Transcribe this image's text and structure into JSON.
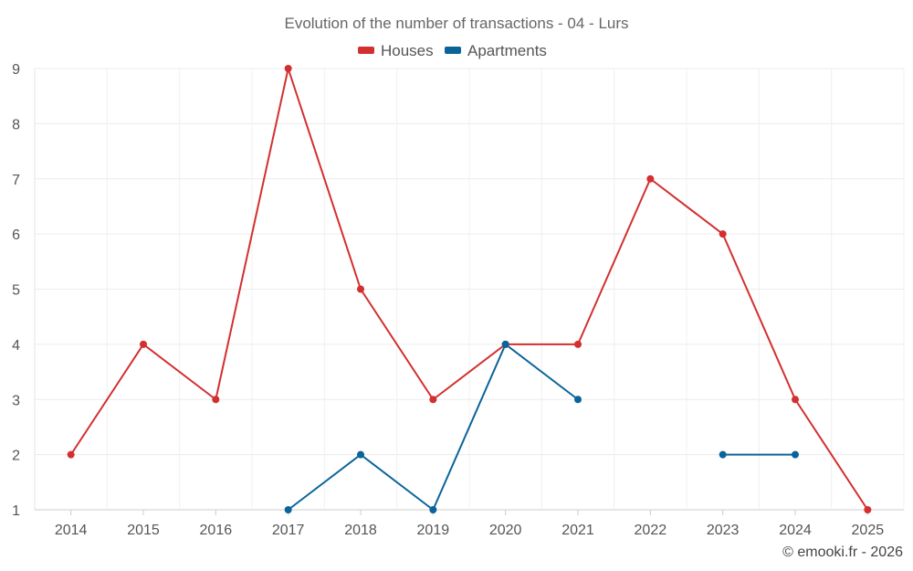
{
  "chart_data": {
    "type": "line",
    "title": "Evolution of the number of transactions - 04 - Lurs",
    "xlabel": "",
    "ylabel": "",
    "categories": [
      "2014",
      "2015",
      "2016",
      "2017",
      "2018",
      "2019",
      "2020",
      "2021",
      "2022",
      "2023",
      "2024",
      "2025"
    ],
    "ylim": [
      1,
      9
    ],
    "yticks": [
      "1",
      "2",
      "3",
      "4",
      "5",
      "6",
      "7",
      "8",
      "9"
    ],
    "grid": true,
    "legend_position": "top-center",
    "series": [
      {
        "name": "Houses",
        "color": "#d32f2f",
        "values": [
          2,
          4,
          3,
          9,
          5,
          3,
          4,
          4,
          7,
          6,
          3,
          1
        ]
      },
      {
        "name": "Apartments",
        "color": "#0a6499",
        "values": [
          null,
          null,
          null,
          1,
          2,
          1,
          4,
          3,
          null,
          2,
          2,
          null
        ]
      }
    ],
    "credit": "© emooki.fr - 2026"
  }
}
